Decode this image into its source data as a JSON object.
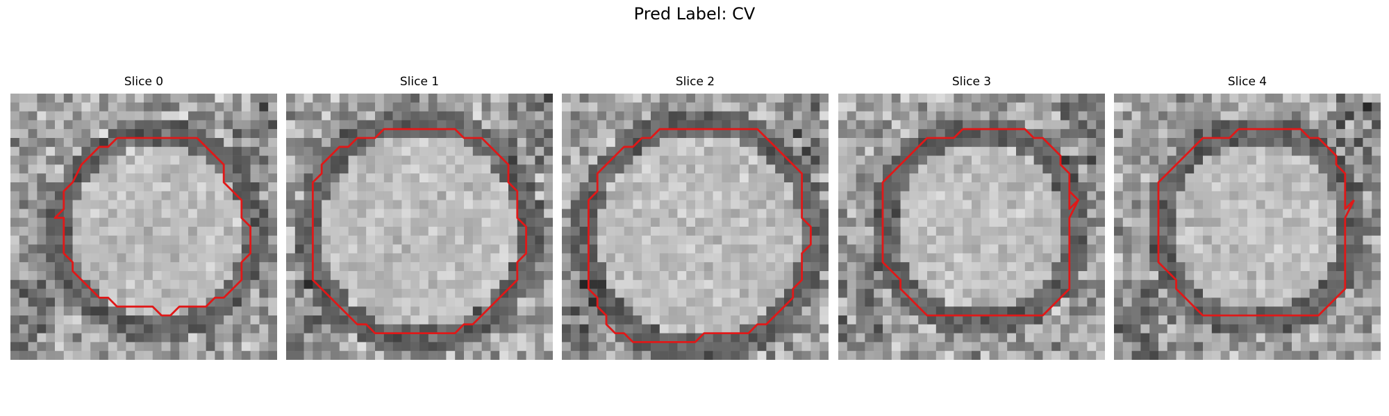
{
  "figure": {
    "suptitle": "Pred Label: CV"
  },
  "slices": [
    {
      "title": "Slice 0",
      "contour_color": "#e01818"
    },
    {
      "title": "Slice 1",
      "contour_color": "#e01818"
    },
    {
      "title": "Slice 2",
      "contour_color": "#e01818"
    },
    {
      "title": "Slice 3",
      "contour_color": "#e01818"
    },
    {
      "title": "Slice 4",
      "contour_color": "#e01818"
    }
  ],
  "colormap": "gray"
}
